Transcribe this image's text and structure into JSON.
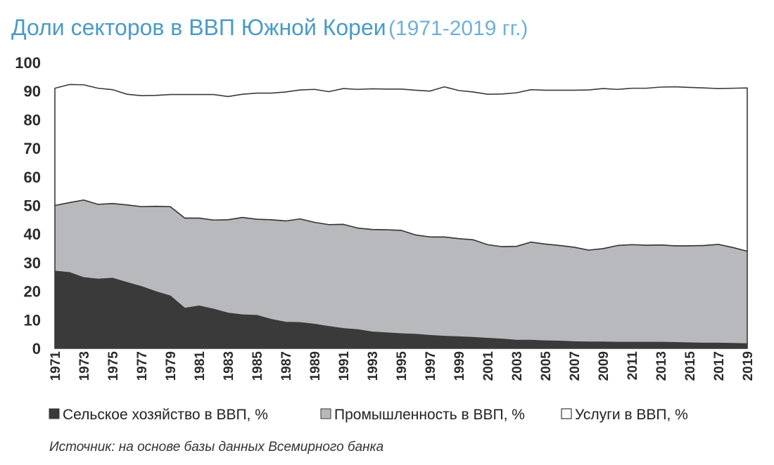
{
  "chart_data": {
    "type": "area",
    "stacked": true,
    "title": "Доли секторов в ВВП Южной Кореи",
    "subtitle": "(1971-2019 гг.)",
    "source": "Источник: на основе базы данных Всемирного банка",
    "ylim": [
      0,
      100
    ],
    "yticks": [
      "0",
      "10",
      "20",
      "30",
      "40",
      "50",
      "60",
      "70",
      "80",
      "90",
      "100"
    ],
    "x": [
      1971,
      1972,
      1973,
      1974,
      1975,
      1976,
      1977,
      1978,
      1979,
      1980,
      1981,
      1982,
      1983,
      1984,
      1985,
      1986,
      1987,
      1988,
      1989,
      1990,
      1991,
      1992,
      1993,
      1994,
      1995,
      1996,
      1997,
      1998,
      1999,
      2000,
      2001,
      2002,
      2003,
      2004,
      2005,
      2006,
      2007,
      2008,
      2009,
      2010,
      2011,
      2012,
      2013,
      2014,
      2015,
      2016,
      2017,
      2018,
      2019
    ],
    "xtick_labels": [
      "1971",
      "1973",
      "1975",
      "1977",
      "1979",
      "1981",
      "1983",
      "1985",
      "1987",
      "1989",
      "1991",
      "1993",
      "1995",
      "1997",
      "1999",
      "2001",
      "2003",
      "2005",
      "2007",
      "2009",
      "2011",
      "2013",
      "2015",
      "2017",
      "2019"
    ],
    "series": [
      {
        "name": "Сельское хозяйство в ВВП, %",
        "color": "#3a3a3a",
        "values": [
          27,
          26.5,
          24.7,
          24.2,
          24.5,
          23,
          21.6,
          19.8,
          18.3,
          14,
          14.8,
          13.7,
          12.3,
          11.7,
          11.5,
          10.1,
          9.1,
          9,
          8.4,
          7.6,
          6.9,
          6.5,
          5.7,
          5.4,
          5.1,
          4.9,
          4.5,
          4.2,
          4,
          3.8,
          3.5,
          3.2,
          2.8,
          2.8,
          2.6,
          2.5,
          2.3,
          2.2,
          2.2,
          2.1,
          2.1,
          2.1,
          2.1,
          2,
          1.9,
          1.8,
          1.8,
          1.7,
          1.6
        ]
      },
      {
        "name": "Промышленность в ВВП, %",
        "color": "#b8b9bc",
        "values": [
          23,
          24.5,
          27.2,
          26.2,
          26.2,
          27.2,
          28,
          29.9,
          31.3,
          31.6,
          30.8,
          31.2,
          32.7,
          34.1,
          33.7,
          34.9,
          35.5,
          36.3,
          35.7,
          35.7,
          36.5,
          35.6,
          35.9,
          36.1,
          36.2,
          34.8,
          34.5,
          34.8,
          34.4,
          34.2,
          32.8,
          32.4,
          32.9,
          34.4,
          33.9,
          33.5,
          33.1,
          32.2,
          32.7,
          33.9,
          34.2,
          34,
          34.1,
          33.9,
          34,
          34.2,
          34.6,
          33.6,
          32.4
        ]
      },
      {
        "name": "Услуги в ВВП, %",
        "color": "#ffffff",
        "values": [
          41,
          41.3,
          40.3,
          40.6,
          39.8,
          38.7,
          38.8,
          38.8,
          39.2,
          43.2,
          43.2,
          43.9,
          43.1,
          43.1,
          44.1,
          44.3,
          45.1,
          45.1,
          46.5,
          46.5,
          47.5,
          48.5,
          49.2,
          49.2,
          49.4,
          50.6,
          51,
          52.5,
          51.8,
          51.7,
          52.6,
          53.4,
          53.7,
          53.3,
          53.8,
          54.3,
          54.9,
          56,
          56,
          54.6,
          54.7,
          54.9,
          55.2,
          55.6,
          55.4,
          55.1,
          54.5,
          55.7,
          57.1
        ]
      }
    ]
  }
}
